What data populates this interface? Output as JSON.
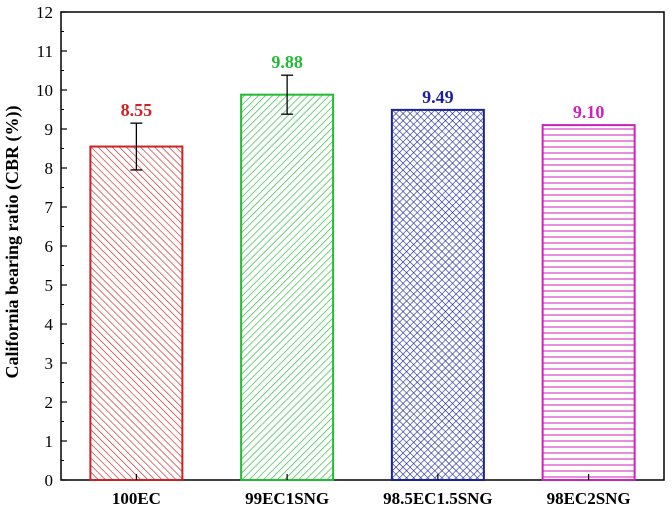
{
  "chart_data": {
    "type": "bar",
    "title": "",
    "xlabel": "",
    "ylabel": "California bearing ratio (CBR (%))",
    "ylim": [
      0,
      12
    ],
    "yticks": [
      "0",
      "1",
      "2",
      "3",
      "4",
      "5",
      "6",
      "7",
      "8",
      "9",
      "10",
      "11",
      "12"
    ],
    "grid": false,
    "categories": [
      "100EC",
      "99EC1SNG",
      "98.5EC1.5SNG",
      "98EC2SNG"
    ],
    "values": [
      8.55,
      9.88,
      9.49,
      9.1
    ],
    "value_labels": [
      "8.55",
      "9.88",
      "9.49",
      "9.10"
    ],
    "error_bars": [
      0.6,
      0.5,
      0.0,
      0.0
    ],
    "colors": [
      "#cc2222",
      "#22bb33",
      "#1a2299",
      "#cc22bb"
    ],
    "hatches": [
      "diagonal-back",
      "diagonal-forward",
      "crosshatch",
      "horizontal"
    ]
  }
}
